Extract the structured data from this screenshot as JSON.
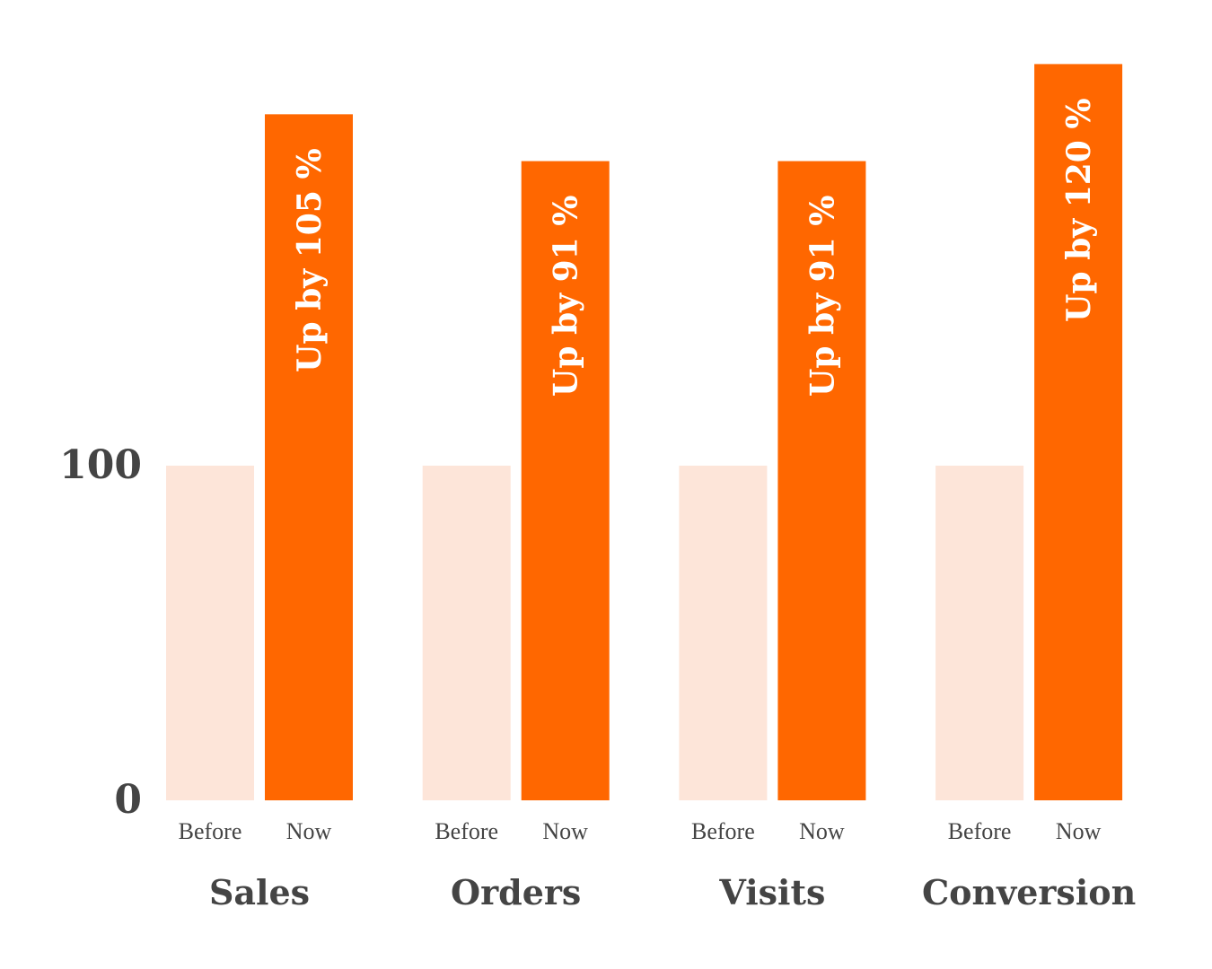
{
  "colors": {
    "before": "#fde5d9",
    "now": "#ff6700",
    "text": "#444444",
    "bar_text": "#ffffff"
  },
  "chart_data": {
    "type": "bar",
    "categories": [
      "Sales",
      "Orders",
      "Visits",
      "Conversion"
    ],
    "sub_categories": [
      "Before",
      "Now"
    ],
    "series": [
      {
        "values": [
          100,
          100,
          100,
          100
        ]
      },
      {
        "values": [
          205,
          191,
          191,
          220
        ]
      }
    ],
    "bar_labels": [
      "Up by 105 %",
      "Up by 91 %",
      "Up by 91 %",
      "Up by 120 %"
    ],
    "y_ticks": [
      0,
      100
    ],
    "y_tick_labels": [
      "0",
      "100"
    ],
    "ylim": [
      0,
      220
    ],
    "title": "",
    "xlabel": "",
    "ylabel": "",
    "grid": false,
    "legend": "none"
  }
}
